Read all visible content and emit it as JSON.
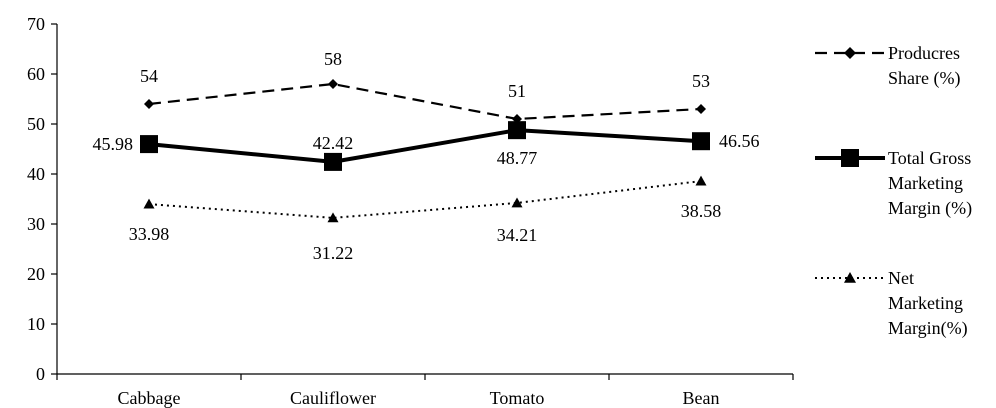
{
  "chart_data": {
    "type": "line",
    "title": "",
    "xlabel": "",
    "ylabel": "",
    "ylim": [
      0,
      70
    ],
    "yticks": [
      0,
      10,
      20,
      30,
      40,
      50,
      60,
      70
    ],
    "categories": [
      "Cabbage",
      "Cauliflower",
      "Tomato",
      "Bean"
    ],
    "grid": false,
    "legend_position": "right",
    "series": [
      {
        "name": "Producres Share (%)",
        "legend_lines": [
          "Producres",
          "Share (%)"
        ],
        "values": [
          54,
          58,
          51,
          53
        ],
        "labels": [
          "54",
          "58",
          "51",
          "53"
        ],
        "line_style": "dashed",
        "marker": "diamond",
        "color": "#000000"
      },
      {
        "name": "Total Gross Marketing Margin (%)",
        "legend_lines": [
          "Total Gross",
          "Marketing",
          "Margin (%)"
        ],
        "values": [
          45.98,
          42.42,
          48.77,
          46.56
        ],
        "labels": [
          "45.98",
          "42.42",
          "48.77",
          "46.56"
        ],
        "line_style": "solid",
        "marker": "square",
        "color": "#000000"
      },
      {
        "name": "Net Marketing Margin(%)",
        "legend_lines": [
          "Net",
          "Marketing",
          "Margin(%)"
        ],
        "values": [
          33.98,
          31.22,
          34.21,
          38.58
        ],
        "labels": [
          "33.98",
          "31.22",
          "34.21",
          "38.58"
        ],
        "line_style": "dotted",
        "marker": "triangle",
        "color": "#000000"
      }
    ]
  }
}
